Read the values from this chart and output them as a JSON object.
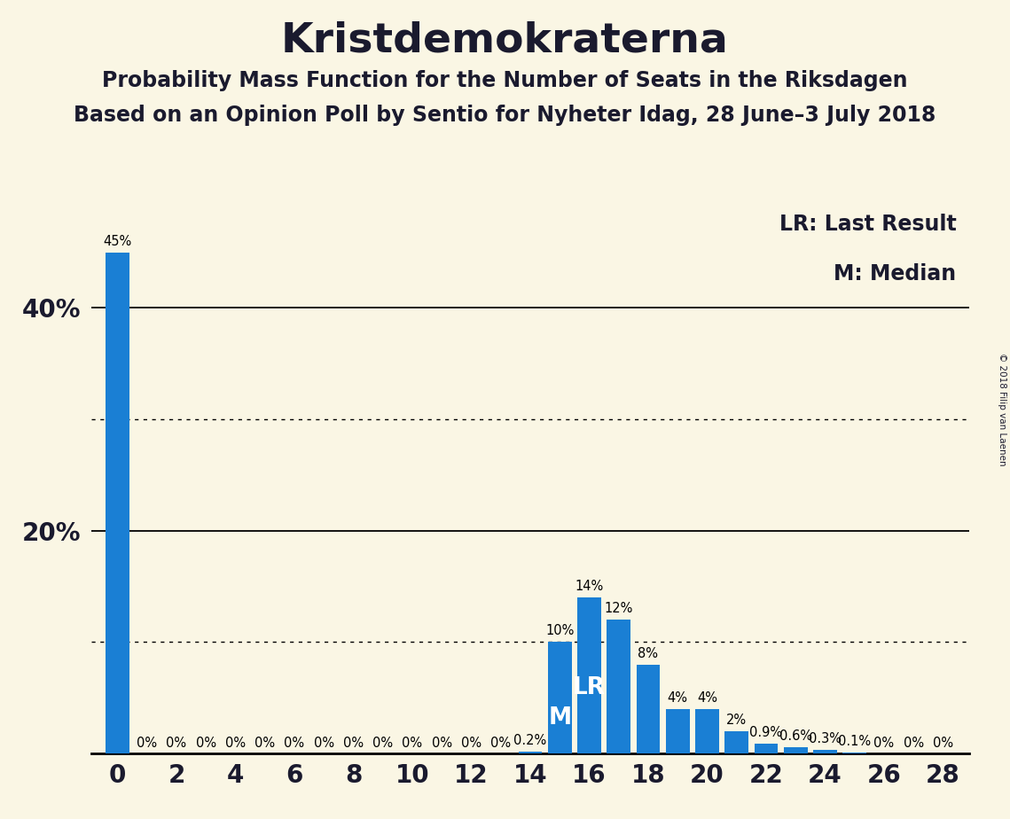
{
  "title": "Kristdemokraterna",
  "subtitle1": "Probability Mass Function for the Number of Seats in the Riksdagen",
  "subtitle2": "Based on an Opinion Poll by Sentio for Nyheter Idag, 28 June–3 July 2018",
  "copyright": "© 2018 Filip van Laenen",
  "legend_lr": "LR: Last Result",
  "legend_m": "M: Median",
  "background_color": "#faf6e4",
  "bar_color": "#1a7fd4",
  "seats": [
    0,
    1,
    2,
    3,
    4,
    5,
    6,
    7,
    8,
    9,
    10,
    11,
    12,
    13,
    14,
    15,
    16,
    17,
    18,
    19,
    20,
    21,
    22,
    23,
    24,
    25,
    26,
    27,
    28
  ],
  "probabilities": [
    45,
    0,
    0,
    0,
    0,
    0,
    0,
    0,
    0,
    0,
    0,
    0,
    0,
    0,
    0.2,
    10,
    14,
    12,
    8,
    4,
    4,
    2,
    0.9,
    0.6,
    0.3,
    0.1,
    0,
    0,
    0
  ],
  "bar_labels": [
    "45%",
    "0%",
    "0%",
    "0%",
    "0%",
    "0%",
    "0%",
    "0%",
    "0%",
    "0%",
    "0%",
    "0%",
    "0%",
    "0%",
    "0.2%",
    "10%",
    "14%",
    "12%",
    "8%",
    "4%",
    "4%",
    "2%",
    "0.9%",
    "0.6%",
    "0.3%",
    "0.1%",
    "0%",
    "0%",
    "0%"
  ],
  "lr_seat": 16,
  "median_seat": 15,
  "xtick_positions": [
    0,
    2,
    4,
    6,
    8,
    10,
    12,
    14,
    16,
    18,
    20,
    22,
    24,
    26,
    28
  ],
  "xtick_labels": [
    "0",
    "2",
    "4",
    "6",
    "8",
    "10",
    "12",
    "14",
    "16",
    "18",
    "20",
    "22",
    "24",
    "26",
    "28"
  ],
  "ytick_positions": [
    20,
    40
  ],
  "ytick_labels": [
    "20%",
    "40%"
  ],
  "ylim": [
    0,
    50
  ],
  "solid_grid_lines": [
    20,
    40
  ],
  "dotted_grid_lines": [
    10,
    30
  ],
  "title_fontsize": 34,
  "subtitle_fontsize": 17,
  "bar_label_fontsize": 10.5,
  "legend_fontsize": 17,
  "tick_fontsize": 20,
  "lr_label_fontsize": 19,
  "m_label_fontsize": 19,
  "copyright_fontsize": 7.5
}
